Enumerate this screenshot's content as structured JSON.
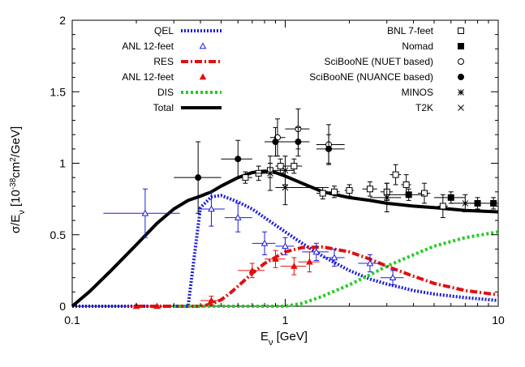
{
  "chart_data": {
    "type": "line",
    "xlabel": "E",
    "xlabel_sub": "ν",
    "xlabel_unit": " [GeV]",
    "ylabel": "σ/E",
    "ylabel_sub": "ν",
    "ylabel_unit_pre": " [10",
    "ylabel_sup": "-38",
    "ylabel_unit_mid": "cm",
    "ylabel_sup2": "2",
    "ylabel_unit_post": "/GeV]",
    "x_scale": "log",
    "xlim": [
      0.1,
      10
    ],
    "ylim": [
      0,
      2
    ],
    "x_ticks": [
      {
        "value": 0.1,
        "label": "0.1"
      },
      {
        "value": 1,
        "label": "1"
      },
      {
        "value": 10,
        "label": "10"
      }
    ],
    "y_ticks": [
      {
        "value": 0,
        "label": "0"
      },
      {
        "value": 0.5,
        "label": "0.5"
      },
      {
        "value": 1,
        "label": "1"
      },
      {
        "value": 1.5,
        "label": "1.5"
      },
      {
        "value": 2,
        "label": "2"
      }
    ],
    "grid": false,
    "legend_left": [
      {
        "label": "QEL",
        "kind": "line",
        "color": "#1c1cdd",
        "dash": "2,2",
        "width": 4
      },
      {
        "label": "ANL 12-feet",
        "kind": "marker",
        "marker": "open-triangle",
        "color": "#1c1cdd"
      },
      {
        "label": "RES",
        "kind": "line",
        "color": "#e01010",
        "dash": "9,3,2,3",
        "width": 4
      },
      {
        "label": "ANL 12-feet",
        "kind": "marker",
        "marker": "filled-triangle",
        "color": "#e01010"
      },
      {
        "label": "DIS",
        "kind": "line",
        "color": "#22cc22",
        "dash": "3,3",
        "width": 4
      },
      {
        "label": "Total",
        "kind": "line",
        "color": "#000000",
        "dash": "",
        "width": 4
      }
    ],
    "legend_right": [
      {
        "label": "BNL 7-feet",
        "marker": "open-square"
      },
      {
        "label": "Nomad",
        "marker": "filled-square"
      },
      {
        "label": "SciBooNE (NUET based)",
        "marker": "open-circle"
      },
      {
        "label": "SciBooNE (NUANCE based)",
        "marker": "filled-circle"
      },
      {
        "label": "MINOS",
        "marker": "star"
      },
      {
        "label": "T2K",
        "marker": "cross"
      }
    ],
    "series": [
      {
        "name": "QEL",
        "color": "#1c1cdd",
        "dash": "2,2",
        "width": 4,
        "x": [
          0.1,
          0.17,
          0.25,
          0.3,
          0.35,
          0.4,
          0.45,
          0.5,
          0.6,
          0.7,
          0.8,
          1.0,
          1.2,
          1.5,
          2.0,
          2.5,
          3.0,
          4.0,
          5.0,
          7.0,
          10.0
        ],
        "y": [
          0.0,
          0.0,
          0.0,
          0.0,
          0.0,
          0.69,
          0.765,
          0.775,
          0.73,
          0.68,
          0.62,
          0.52,
          0.44,
          0.35,
          0.25,
          0.19,
          0.155,
          0.11,
          0.085,
          0.06,
          0.04
        ]
      },
      {
        "name": "RES",
        "color": "#e01010",
        "dash": "9,3,2,3",
        "width": 4,
        "x": [
          0.2,
          0.3,
          0.4,
          0.45,
          0.5,
          0.55,
          0.6,
          0.7,
          0.8,
          1.0,
          1.2,
          1.5,
          2.0,
          2.5,
          3.0,
          4.0,
          5.0,
          7.0,
          10.0
        ],
        "y": [
          0.0,
          0.0,
          0.0,
          0.015,
          0.045,
          0.09,
          0.14,
          0.23,
          0.3,
          0.38,
          0.41,
          0.415,
          0.38,
          0.33,
          0.28,
          0.21,
          0.16,
          0.11,
          0.08
        ]
      },
      {
        "name": "DIS",
        "color": "#22cc22",
        "dash": "3,3",
        "width": 4,
        "x": [
          0.3,
          0.6,
          1.0,
          1.2,
          1.5,
          2.0,
          2.5,
          3.0,
          4.0,
          5.0,
          7.0,
          10.0
        ],
        "y": [
          0.0,
          0.0,
          0.0,
          0.02,
          0.07,
          0.15,
          0.22,
          0.28,
          0.36,
          0.42,
          0.48,
          0.52
        ]
      },
      {
        "name": "Total",
        "color": "#000000",
        "dash": "",
        "width": 4,
        "x": [
          0.1,
          0.12,
          0.15,
          0.2,
          0.25,
          0.3,
          0.35,
          0.4,
          0.45,
          0.5,
          0.6,
          0.7,
          0.8,
          0.9,
          1.0,
          1.2,
          1.5,
          2.0,
          2.5,
          3.0,
          4.0,
          5.0,
          7.0,
          10.0
        ],
        "y": [
          0.0,
          0.1,
          0.24,
          0.43,
          0.58,
          0.68,
          0.74,
          0.77,
          0.8,
          0.84,
          0.9,
          0.935,
          0.945,
          0.935,
          0.91,
          0.86,
          0.8,
          0.76,
          0.74,
          0.72,
          0.7,
          0.69,
          0.67,
          0.66
        ]
      }
    ],
    "data_points": [
      {
        "set": "ANL QEL",
        "marker": "open-triangle",
        "color": "#1c1cdd",
        "pts": [
          [
            0.22,
            0.65,
            0.14,
            0.32,
            0.17
          ],
          [
            0.45,
            0.68,
            0.39,
            0.52,
            0.12
          ],
          [
            0.6,
            0.62,
            0.52,
            0.7,
            0.1
          ],
          [
            0.8,
            0.44,
            0.7,
            0.9,
            0.08
          ],
          [
            1.0,
            0.42,
            0.9,
            1.1,
            0.06
          ],
          [
            1.4,
            0.38,
            1.2,
            1.6,
            0.06
          ],
          [
            1.7,
            0.34,
            1.5,
            1.9,
            0.06
          ],
          [
            2.5,
            0.3,
            2.2,
            2.8,
            0.06
          ],
          [
            3.2,
            0.2,
            2.8,
            3.6,
            0.05
          ]
        ]
      },
      {
        "set": "ANL RES",
        "marker": "filled-triangle",
        "color": "#e01010",
        "pts": [
          [
            0.2,
            0.0,
            0.18,
            0.22,
            0.005
          ],
          [
            0.25,
            0.0,
            0.22,
            0.28,
            0.005
          ],
          [
            0.45,
            0.04,
            0.4,
            0.5,
            0.03
          ],
          [
            0.7,
            0.25,
            0.6,
            0.8,
            0.05
          ],
          [
            0.9,
            0.33,
            0.8,
            1.0,
            0.06
          ],
          [
            1.1,
            0.28,
            0.95,
            1.25,
            0.06
          ],
          [
            1.3,
            0.31,
            1.15,
            1.45,
            0.07
          ]
        ]
      },
      {
        "set": "BNL 7-feet",
        "marker": "open-square",
        "color": "#000000",
        "pts": [
          [
            0.65,
            0.9,
            0.6,
            0.7,
            0.04
          ],
          [
            0.75,
            0.93,
            0.7,
            0.8,
            0.05
          ],
          [
            0.85,
            0.95,
            0.8,
            0.9,
            0.05
          ],
          [
            0.95,
            0.98,
            0.9,
            1.0,
            0.05
          ],
          [
            1.1,
            0.98,
            1.0,
            1.2,
            0.05
          ],
          [
            1.5,
            0.79,
            1.4,
            1.6,
            0.04
          ],
          [
            1.7,
            0.8,
            1.6,
            1.8,
            0.04
          ],
          [
            2.0,
            0.81,
            1.9,
            2.1,
            0.04
          ],
          [
            2.5,
            0.82,
            2.3,
            2.7,
            0.05
          ],
          [
            3.0,
            0.8,
            2.8,
            3.2,
            0.06
          ],
          [
            3.3,
            0.92,
            3.1,
            3.5,
            0.07
          ],
          [
            3.7,
            0.85,
            3.5,
            3.9,
            0.07
          ],
          [
            4.5,
            0.79,
            4.2,
            4.8,
            0.07
          ],
          [
            5.5,
            0.7,
            5.2,
            5.8,
            0.08
          ]
        ]
      },
      {
        "set": "Nomad",
        "marker": "filled-square",
        "color": "#000000",
        "pts": [
          [
            3.8,
            0.78,
            3.0,
            4.5,
            0.04
          ],
          [
            6.0,
            0.76,
            5.0,
            7.0,
            0.04
          ],
          [
            8.0,
            0.72,
            7.0,
            9.0,
            0.04
          ],
          [
            9.5,
            0.72,
            9.0,
            10.0,
            0.04
          ]
        ]
      },
      {
        "set": "SciBooNE NUET",
        "marker": "open-circle",
        "color": "#000000",
        "pts": [
          [
            0.92,
            1.18,
            0.85,
            1.0,
            0.13
          ],
          [
            1.15,
            1.24,
            1.0,
            1.3,
            0.14
          ],
          [
            1.6,
            1.13,
            1.4,
            1.9,
            0.14
          ]
        ]
      },
      {
        "set": "SciBooNE NUANCE",
        "marker": "filled-circle",
        "color": "#000000",
        "pts": [
          [
            0.39,
            0.9,
            0.3,
            0.5,
            0.25
          ],
          [
            0.6,
            1.03,
            0.5,
            0.7,
            0.13
          ],
          [
            0.9,
            1.15,
            0.8,
            1.0,
            0.1
          ],
          [
            1.15,
            1.15,
            1.0,
            1.3,
            0.1
          ],
          [
            1.6,
            1.1,
            1.4,
            1.9,
            0.1
          ]
        ]
      },
      {
        "set": "MINOS",
        "marker": "star",
        "color": "#000000",
        "pts": [
          [
            1.0,
            0.83,
            0.9,
            1.6,
            0.12
          ],
          [
            3.0,
            0.76,
            2.5,
            3.5,
            0.1
          ],
          [
            7.0,
            0.72,
            6.0,
            8.0,
            0.06
          ]
        ]
      },
      {
        "set": "T2K",
        "marker": "cross",
        "color": "#000000",
        "pts": [
          [
            0.85,
            0.93,
            0.7,
            1.0,
            0.12
          ],
          [
            1.0,
            0.95,
            0.9,
            1.1,
            0.1
          ]
        ]
      }
    ]
  }
}
